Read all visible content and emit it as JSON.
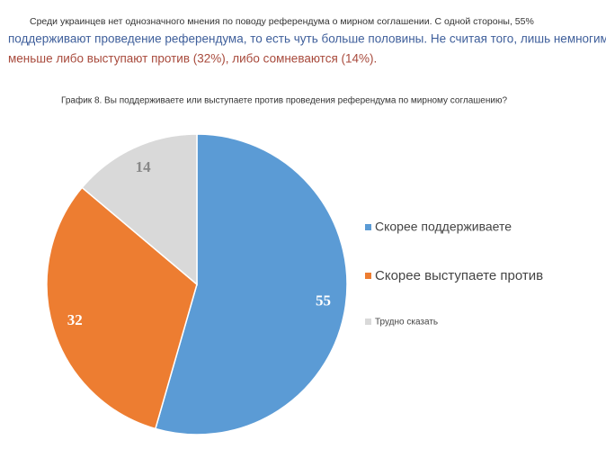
{
  "paragraph": [
    "Среди украинцев нет однозначного мнения по поводу референдума о мирном соглашении. С одной стороны, 55%",
    "поддерживают проведение референдума, то есть чуть больше половины. Не считая того, лишь немногим",
    "меньше либо выступают против (32%), либо сомневаются (14%)."
  ],
  "chart_data": {
    "type": "pie",
    "title": "График 8. Вы поддерживаете или выступаете против проведения референдума по мирному соглашению?",
    "categories": [
      "Скорее поддерживаете",
      "Скорее выступаете против",
      "Трудно сказать"
    ],
    "values": [
      55,
      32,
      14
    ],
    "colors": [
      "#5b9bd5",
      "#ed7d31",
      "#d9d9d9"
    ],
    "legend": "right"
  }
}
